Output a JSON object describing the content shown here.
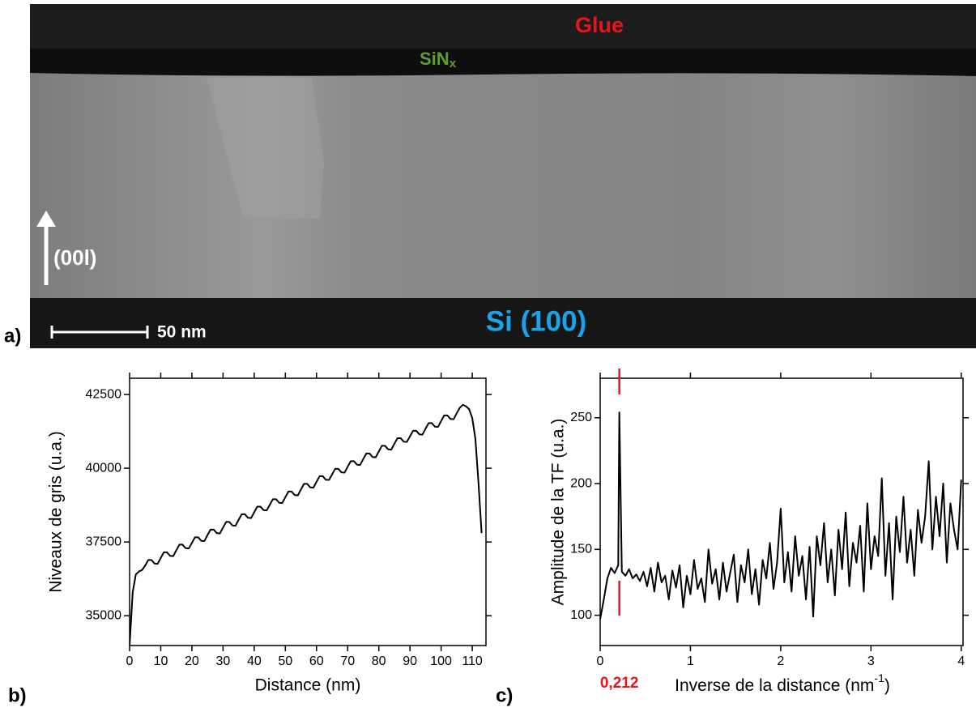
{
  "image_panel": {
    "panel_label": "a)",
    "glue": "Glue",
    "sinx": {
      "main": "SiN",
      "sub": "x"
    },
    "orientation": "(00l)",
    "scale_bar": "50 nm",
    "substrate": "Si (100)"
  },
  "chart_data": [
    {
      "type": "line",
      "panel_label": "b)",
      "x_label": "Distance (nm)",
      "y_label": "Niveaux de gris (u.a.)",
      "color": "#000000",
      "x": [
        0,
        1,
        2,
        3,
        4,
        5,
        6,
        7,
        8,
        9,
        10,
        11,
        12,
        13,
        14,
        15,
        16,
        17,
        18,
        19,
        20,
        21,
        22,
        23,
        24,
        25,
        26,
        27,
        28,
        29,
        30,
        31,
        32,
        33,
        34,
        35,
        36,
        37,
        38,
        39,
        40,
        41,
        42,
        43,
        44,
        45,
        46,
        47,
        48,
        49,
        50,
        51,
        52,
        53,
        54,
        55,
        56,
        57,
        58,
        59,
        60,
        61,
        62,
        63,
        64,
        65,
        66,
        67,
        68,
        69,
        70,
        71,
        72,
        73,
        74,
        75,
        76,
        77,
        78,
        79,
        80,
        81,
        82,
        83,
        84,
        85,
        86,
        87,
        88,
        89,
        90,
        91,
        92,
        93,
        94,
        95,
        96,
        97,
        98,
        99,
        100,
        101,
        102,
        103,
        104,
        105,
        106,
        107,
        108,
        109,
        110,
        111,
        112,
        113
      ],
      "values": [
        34000,
        35800,
        36400,
        36500,
        36550,
        36700,
        36890,
        36890,
        36770,
        36760,
        36960,
        37150,
        37150,
        37030,
        37020,
        37220,
        37410,
        37410,
        37290,
        37280,
        37470,
        37660,
        37660,
        37540,
        37530,
        37730,
        37920,
        37920,
        37800,
        37790,
        37990,
        38180,
        38180,
        38060,
        38050,
        38250,
        38440,
        38440,
        38320,
        38310,
        38510,
        38700,
        38700,
        38580,
        38570,
        38760,
        38950,
        38950,
        38830,
        38820,
        39020,
        39210,
        39210,
        39090,
        39080,
        39280,
        39470,
        39470,
        39350,
        39340,
        39540,
        39730,
        39730,
        39610,
        39600,
        39790,
        39980,
        39980,
        39860,
        39850,
        40050,
        40240,
        40240,
        40120,
        40110,
        40310,
        40500,
        40500,
        40380,
        40370,
        40570,
        40760,
        40760,
        40640,
        40630,
        40830,
        41020,
        41020,
        40900,
        40890,
        41080,
        41270,
        41270,
        41150,
        41140,
        41340,
        41530,
        41530,
        41410,
        41400,
        41600,
        41790,
        41790,
        41670,
        41660,
        41860,
        42050,
        42150,
        42100,
        42000,
        41700,
        41000,
        39500,
        37800
      ],
      "xlim": [
        0,
        114.4
      ],
      "ylim": [
        33990,
        43050
      ],
      "xticks": [
        0,
        10,
        20,
        30,
        40,
        50,
        60,
        70,
        80,
        90,
        100,
        110
      ],
      "yticks": [
        35000,
        37500,
        40000,
        42500
      ]
    },
    {
      "type": "line",
      "panel_label": "c)",
      "x_label": {
        "text": "Inverse de la distance (nm",
        "sup": "-1",
        "end": ")"
      },
      "y_label": "Amplitude de la TF (u.a.)",
      "color": "#000000",
      "x": [
        0,
        0.04,
        0.08,
        0.12,
        0.16,
        0.2,
        0.212,
        0.24,
        0.28,
        0.32,
        0.36,
        0.4,
        0.44,
        0.48,
        0.52,
        0.56,
        0.6,
        0.64,
        0.68,
        0.72,
        0.76,
        0.8,
        0.84,
        0.88,
        0.92,
        0.96,
        1,
        1.04,
        1.08,
        1.12,
        1.16,
        1.2,
        1.24,
        1.28,
        1.32,
        1.36,
        1.4,
        1.44,
        1.48,
        1.52,
        1.56,
        1.6,
        1.64,
        1.68,
        1.72,
        1.76,
        1.8,
        1.84,
        1.88,
        1.92,
        1.96,
        2,
        2.04,
        2.08,
        2.12,
        2.16,
        2.2,
        2.24,
        2.28,
        2.32,
        2.36,
        2.4,
        2.44,
        2.48,
        2.52,
        2.56,
        2.6,
        2.64,
        2.68,
        2.72,
        2.76,
        2.8,
        2.84,
        2.88,
        2.92,
        2.96,
        3,
        3.04,
        3.08,
        3.12,
        3.16,
        3.2,
        3.24,
        3.28,
        3.32,
        3.36,
        3.4,
        3.44,
        3.48,
        3.52,
        3.56,
        3.6,
        3.64,
        3.68,
        3.72,
        3.76,
        3.8,
        3.84,
        3.88,
        3.92,
        3.96,
        4
      ],
      "values": [
        97,
        112,
        128,
        136,
        132,
        138,
        254,
        133,
        130,
        135,
        128,
        131,
        126,
        133,
        122,
        136,
        118,
        140,
        125,
        130,
        112,
        134,
        121,
        138,
        106,
        130,
        116,
        142,
        120,
        128,
        110,
        150,
        124,
        135,
        112,
        140,
        118,
        132,
        146,
        110,
        138,
        125,
        150,
        116,
        135,
        108,
        142,
        128,
        155,
        120,
        140,
        181,
        125,
        148,
        118,
        160,
        130,
        145,
        112,
        152,
        99,
        160,
        138,
        170,
        125,
        150,
        115,
        165,
        135,
        178,
        122,
        155,
        140,
        168,
        118,
        185,
        135,
        160,
        145,
        204,
        130,
        170,
        112,
        175,
        148,
        190,
        140,
        165,
        130,
        180,
        155,
        175,
        217,
        150,
        190,
        160,
        200,
        140,
        185,
        165,
        150,
        203
      ],
      "xlim": [
        0,
        4.02
      ],
      "ylim": [
        77,
        280
      ],
      "xticks": [
        0,
        1,
        2,
        3,
        4
      ],
      "yticks": [
        100,
        150,
        200,
        250
      ],
      "annotation": {
        "x": 0.212,
        "label": "0,212",
        "color": "#e8141c"
      }
    }
  ]
}
